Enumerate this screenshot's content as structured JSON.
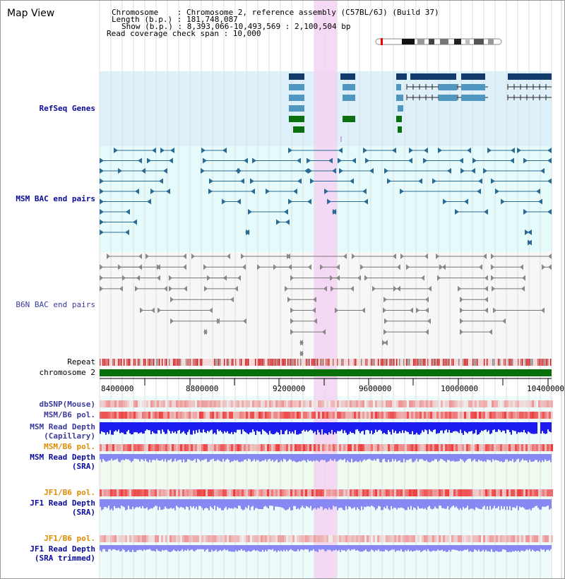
{
  "title": "Map View",
  "info": {
    "chromosome": "Chromosome    : Chromosome 2, reference assembly (C57BL/6J) (Build 37)",
    "length": "Length (b.p.) : 181,748,087",
    "show": "Show (b.p.) : 8,393,066-10,493,569 : 2,100,504 bp",
    "coverage": "Read coverage check span : 10,000"
  },
  "tracks": {
    "refseq": "RefSeq Genes",
    "msm_bac": "MSM BAC end pairs",
    "b6n_bac": "B6N BAC end pairs",
    "repeat": "Repeat",
    "chromosome": "chromosome 2",
    "dbsnp": "dbSNP(Mouse)",
    "msm_b6_pol_1": "MSM/B6 pol.",
    "msm_read_depth_cap": "MSM Read Depth",
    "msm_read_depth_cap_sub": "(Capillary)",
    "msm_b6_pol_2": "MSM/B6 pol.",
    "msm_read_depth_sra": "MSM Read Depth",
    "msm_read_depth_sra_sub": "(SRA)",
    "jf1_b6_pol_1": "JF1/B6 pol.",
    "jf1_read_depth": "JF1 Read Depth",
    "jf1_read_depth_sub": "(SRA)",
    "jf1_b6_pol_2": "JF1/B6 pol.",
    "jf1_read_depth_trim": "JF1 Read Depth",
    "jf1_read_depth_trim_sub": "(SRA trimmed)"
  },
  "axis": {
    "ticks": [
      "8400000",
      "8800000",
      "9200000",
      "9600000",
      "10000000",
      "10400000"
    ]
  },
  "colors": {
    "refseq_bg": "#def1fb",
    "bac_bg": "#e5fbfb",
    "highlight": "#f5d2f2",
    "gene_navy": "#123a6b",
    "gene_steel": "#4f96c0",
    "gene_green": "#0a7010",
    "msm_pair": "#2a6a94",
    "b6n_pair": "#777777",
    "chromosome_bar": "#087008",
    "depth_dark": "#1c1cf0",
    "depth_light": "#8888f4",
    "label_blue": "#0a0a9a",
    "label_orange": "#e08a00"
  }
}
